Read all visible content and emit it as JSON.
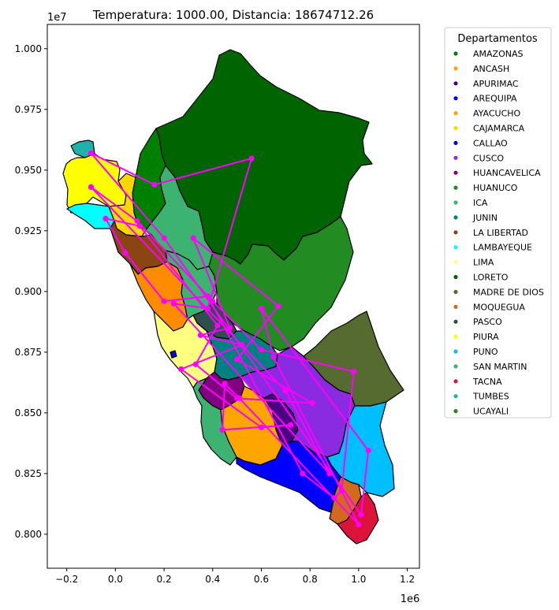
{
  "chart_data": {
    "type": "map-route",
    "title": "Temperatura: 1000.00, Distancia: 18674712.26",
    "x_ticks": [
      "−0.2",
      "0.0",
      "0.2",
      "0.4",
      "0.6",
      "0.8",
      "1.0",
      "1.2"
    ],
    "y_ticks": [
      "0.800",
      "0.825",
      "0.850",
      "0.875",
      "0.900",
      "0.925",
      "0.950",
      "0.975",
      "1.000"
    ],
    "x_offset_label": "1e6",
    "y_offset_label": "1e7",
    "xlim": [
      -280000,
      1250000
    ],
    "ylim": [
      7860000,
      10100000
    ],
    "route_color": "#ff00ff",
    "route": [
      [
        -100000,
        9570000
      ],
      [
        160000,
        9440000
      ],
      [
        560000,
        9548000
      ],
      [
        380000,
        8930000
      ],
      [
        240000,
        8950000
      ],
      [
        880000,
        8250000
      ],
      [
        700000,
        8590000
      ],
      [
        -100000,
        9430000
      ],
      [
        90000,
        9290000
      ],
      [
        400000,
        8960000
      ],
      [
        600000,
        8760000
      ],
      [
        980000,
        8670000
      ],
      [
        930000,
        8180000
      ],
      [
        900000,
        8150000
      ],
      [
        770000,
        8250000
      ],
      [
        380000,
        8980000
      ],
      [
        200000,
        8960000
      ],
      [
        40000,
        9160000
      ],
      [
        -40000,
        9300000
      ],
      [
        100000,
        9270000
      ],
      [
        420000,
        8860000
      ],
      [
        330000,
        8700000
      ],
      [
        500000,
        8560000
      ],
      [
        810000,
        8540000
      ],
      [
        500000,
        8720000
      ],
      [
        670000,
        8940000
      ],
      [
        320000,
        9220000
      ],
      [
        470000,
        8850000
      ],
      [
        350000,
        8820000
      ],
      [
        520000,
        8780000
      ],
      [
        270000,
        8680000
      ],
      [
        600000,
        8440000
      ],
      [
        720000,
        8450000
      ],
      [
        440000,
        8430000
      ],
      [
        450000,
        8620000
      ],
      [
        510000,
        8560000
      ],
      [
        1000000,
        8040000
      ],
      [
        650000,
        8730000
      ],
      [
        600000,
        8930000
      ],
      [
        1040000,
        8345000
      ],
      [
        1010000,
        8080000
      ],
      [
        200000,
        9220000
      ],
      [
        -100000,
        9570000
      ]
    ],
    "legend_title": "Departamentos",
    "legend": [
      {
        "name": "AMAZONAS",
        "color": "#008000"
      },
      {
        "name": "ANCASH",
        "color": "#ffa500"
      },
      {
        "name": "APURIMAC",
        "color": "#4b0082"
      },
      {
        "name": "AREQUIPA",
        "color": "#0000ff"
      },
      {
        "name": "AYACUCHO",
        "color": "#ffa500"
      },
      {
        "name": "CAJAMARCA",
        "color": "#ffd700"
      },
      {
        "name": "CALLAO",
        "color": "#0000ff"
      },
      {
        "name": "CUSCO",
        "color": "#8a2be2"
      },
      {
        "name": "HUANCAVELICA",
        "color": "#800080"
      },
      {
        "name": "HUANUCO",
        "color": "#228b22"
      },
      {
        "name": "ICA",
        "color": "#3cb371"
      },
      {
        "name": "JUNIN",
        "color": "#008080"
      },
      {
        "name": "LA LIBERTAD",
        "color": "#8b4513"
      },
      {
        "name": "LAMBAYEQUE",
        "color": "#00ffff"
      },
      {
        "name": "LIMA",
        "color": "#ffff80"
      },
      {
        "name": "LORETO",
        "color": "#006400"
      },
      {
        "name": "MADRE DE DIOS",
        "color": "#556b2f"
      },
      {
        "name": "MOQUEGUA",
        "color": "#d2691e"
      },
      {
        "name": "PASCO",
        "color": "#2f4f4f"
      },
      {
        "name": "PIURA",
        "color": "#ffff00"
      },
      {
        "name": "PUNO",
        "color": "#00bfff"
      },
      {
        "name": "SAN MARTIN",
        "color": "#3cb371"
      },
      {
        "name": "TACNA",
        "color": "#dc143c"
      },
      {
        "name": "TUMBES",
        "color": "#20b2aa"
      },
      {
        "name": "UCAYALI",
        "color": "#228b22"
      }
    ]
  }
}
